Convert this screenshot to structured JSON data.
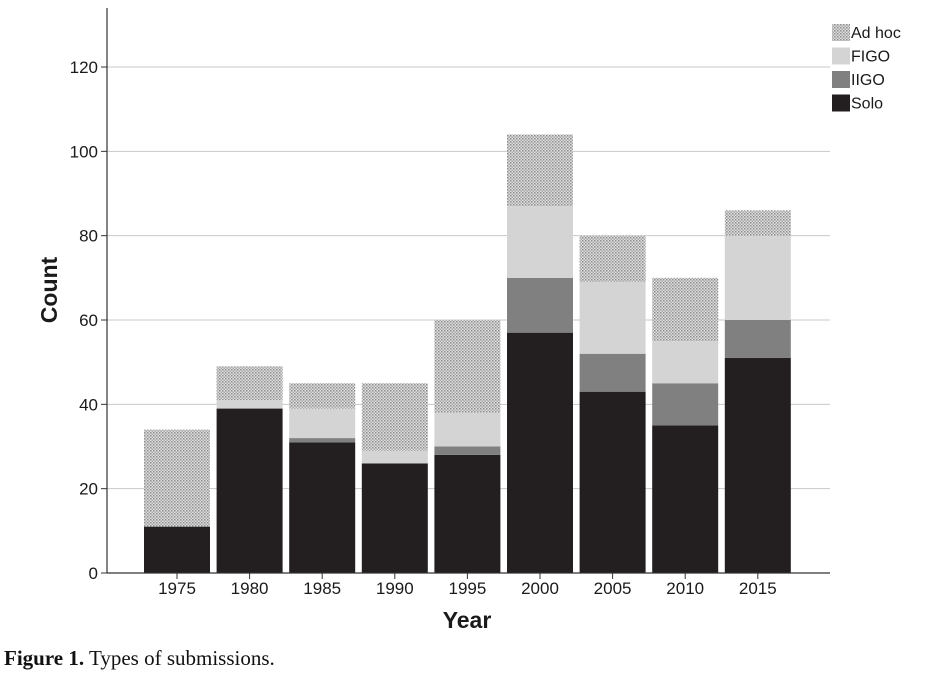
{
  "caption": {
    "label": "Figure 1.",
    "text": " Types of submissions."
  },
  "chart_data": {
    "type": "bar",
    "stacked": true,
    "categories": [
      "1975",
      "1980",
      "1985",
      "1990",
      "1995",
      "2000",
      "2005",
      "2010",
      "2015"
    ],
    "series": [
      {
        "name": "Solo",
        "color": "#231f20",
        "pattern": "solid",
        "values": [
          11,
          39,
          31,
          26,
          28,
          57,
          43,
          35,
          51
        ]
      },
      {
        "name": "IIGO",
        "color": "#808080",
        "pattern": "solid",
        "values": [
          0,
          0,
          1,
          0,
          2,
          13,
          9,
          10,
          9
        ]
      },
      {
        "name": "FIGO",
        "color": "#d4d4d4",
        "pattern": "solid",
        "values": [
          0,
          2,
          7,
          3,
          8,
          17,
          17,
          10,
          20
        ]
      },
      {
        "name": "Ad hoc",
        "color": "#bdbdbd",
        "pattern": "dotted",
        "values": [
          23,
          8,
          6,
          16,
          22,
          17,
          11,
          15,
          6
        ]
      }
    ],
    "xlabel": "Year",
    "ylabel": "Count",
    "ylim": [
      0,
      134
    ],
    "yticks": [
      0,
      20,
      40,
      60,
      80,
      100,
      120
    ],
    "grid": "horizontal",
    "legend_position": "top-right",
    "legend_order": [
      "Ad hoc",
      "FIGO",
      "IIGO",
      "Solo"
    ]
  }
}
